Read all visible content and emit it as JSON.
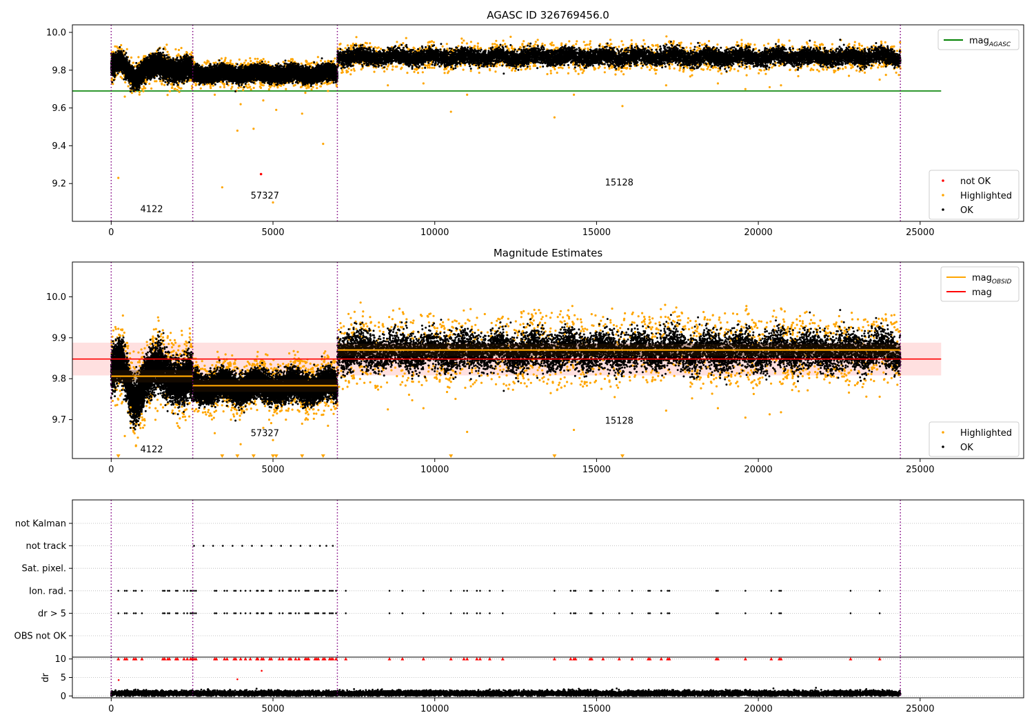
{
  "chart_data": [
    {
      "type": "scatter",
      "title": "AGASC ID 326769456.0",
      "xlim": [
        -1200,
        28200
      ],
      "ylim": [
        9.0,
        10.04
      ],
      "xticks": [
        0,
        5000,
        10000,
        15000,
        20000,
        25000
      ],
      "yticks": [
        9.2,
        9.4,
        9.6,
        9.8,
        10.0
      ],
      "xtick_labels": [
        "0",
        "5000",
        "10000",
        "15000",
        "20000",
        "25000"
      ],
      "ytick_labels": [
        "9.2",
        "9.4",
        "9.6",
        "9.8",
        "10.0"
      ],
      "observation_boundaries": [
        0,
        2520,
        6990,
        24390
      ],
      "observation_labels": [
        {
          "text": "4122",
          "x": 1250,
          "y": 9.05
        },
        {
          "text": "57327",
          "x": 4750,
          "y": 9.12
        },
        {
          "text": "15128",
          "x": 15700,
          "y": 9.19
        }
      ],
      "reference_line": {
        "name": "mag",
        "subscript": "AGASC",
        "y": 9.69,
        "x": [
          -1200,
          25650
        ],
        "color": "#008000"
      },
      "segments": [
        {
          "x": [
            0,
            2520
          ],
          "mean": 9.81,
          "spread": 0.025,
          "bumps": [
            [
              300,
              9.84
            ],
            [
              700,
              9.76
            ],
            [
              1500,
              9.82
            ],
            [
              2200,
              9.8
            ]
          ]
        },
        {
          "x": [
            2520,
            6990
          ],
          "mean": 9.78,
          "spread": 0.018,
          "bumps": []
        },
        {
          "x": [
            6990,
            24390
          ],
          "mean": 9.87,
          "spread": 0.02,
          "bumps": []
        }
      ],
      "highlighted_outliers": [
        [
          220,
          9.23
        ],
        [
          420,
          9.66
        ],
        [
          600,
          9.73
        ],
        [
          3430,
          9.18
        ],
        [
          3900,
          9.48
        ],
        [
          4000,
          9.62
        ],
        [
          4400,
          9.49
        ],
        [
          4700,
          9.64
        ],
        [
          5000,
          9.1
        ],
        [
          5100,
          9.59
        ],
        [
          5900,
          9.57
        ],
        [
          6550,
          9.41
        ],
        [
          6000,
          9.68
        ],
        [
          8550,
          9.72
        ],
        [
          9650,
          9.73
        ],
        [
          10500,
          9.58
        ],
        [
          11000,
          9.67
        ],
        [
          13700,
          9.55
        ],
        [
          14300,
          9.67
        ],
        [
          15800,
          9.61
        ],
        [
          17150,
          9.72
        ],
        [
          18750,
          9.73
        ],
        [
          19600,
          9.7
        ],
        [
          20350,
          9.71
        ],
        [
          20700,
          9.72
        ],
        [
          22800,
          9.77
        ],
        [
          23750,
          9.75
        ],
        [
          3200,
          9.67
        ],
        [
          5400,
          9.7
        ],
        [
          6700,
          9.69
        ]
      ],
      "not_ok_points": [
        [
          4630,
          9.25
        ]
      ],
      "legends": [
        {
          "entries": [
            {
              "label": "mag",
              "subscript": "AGASC",
              "color": "#008000",
              "kind": "line"
            }
          ],
          "placement": "upper right"
        },
        {
          "entries": [
            {
              "label": "not OK",
              "color": "#ff0000",
              "kind": "point"
            },
            {
              "label": "Highlighted",
              "color": "#ffa500",
              "kind": "point"
            },
            {
              "label": "OK",
              "color": "#000000",
              "kind": "point"
            }
          ],
          "placement": "lower right"
        }
      ]
    },
    {
      "type": "scatter",
      "title": "Magnitude Estimates",
      "xlim": [
        -1200,
        28200
      ],
      "ylim": [
        9.605,
        10.085
      ],
      "xticks": [
        0,
        5000,
        10000,
        15000,
        20000,
        25000
      ],
      "yticks": [
        9.7,
        9.8,
        9.9,
        10.0
      ],
      "xtick_labels": [
        "0",
        "5000",
        "10000",
        "15000",
        "20000",
        "25000"
      ],
      "ytick_labels": [
        "9.7",
        "9.8",
        "9.9",
        "10.0"
      ],
      "observation_boundaries": [
        0,
        2520,
        6990,
        24390
      ],
      "observation_labels": [
        {
          "text": "4122",
          "x": 1250,
          "y": 9.62
        },
        {
          "text": "57327",
          "x": 4750,
          "y": 9.66
        },
        {
          "text": "15128",
          "x": 15700,
          "y": 9.69
        }
      ],
      "mag_line": {
        "name": "mag",
        "y": 9.848,
        "band": [
          9.808,
          9.888
        ],
        "x": [
          -1200,
          25650
        ],
        "color": "#ff0000"
      },
      "obsid_means": [
        {
          "x": [
            0,
            2520
          ],
          "y": 9.806
        },
        {
          "x": [
            2520,
            6990
          ],
          "y": 9.783
        },
        {
          "x": [
            6990,
            24390
          ],
          "y": 9.87
        }
      ],
      "segments": [
        {
          "x": [
            0,
            2520
          ],
          "mean": 9.805,
          "spread": 0.025,
          "bumps": [
            [
              300,
              9.84
            ],
            [
              700,
              9.75
            ],
            [
              1500,
              9.82
            ],
            [
              2200,
              9.79
            ]
          ]
        },
        {
          "x": [
            2520,
            6990
          ],
          "mean": 9.78,
          "spread": 0.016,
          "bumps": []
        },
        {
          "x": [
            6990,
            24390
          ],
          "mean": 9.868,
          "spread": 0.022,
          "bumps": []
        }
      ],
      "highlighted_outliers": [
        [
          420,
          9.66
        ],
        [
          600,
          9.73
        ],
        [
          3200,
          9.667
        ],
        [
          3700,
          9.7
        ],
        [
          4000,
          9.64
        ],
        [
          4700,
          9.68
        ],
        [
          5000,
          9.65
        ],
        [
          5400,
          9.7
        ],
        [
          5900,
          9.69
        ],
        [
          6000,
          9.7
        ],
        [
          6700,
          9.685
        ],
        [
          8550,
          9.725
        ],
        [
          9650,
          9.728
        ],
        [
          11000,
          9.67
        ],
        [
          14300,
          9.675
        ],
        [
          17150,
          9.722
        ],
        [
          18750,
          9.728
        ],
        [
          19600,
          9.705
        ],
        [
          20350,
          9.713
        ],
        [
          20700,
          9.718
        ],
        [
          22800,
          9.766
        ],
        [
          23750,
          9.756
        ],
        [
          8200,
          9.78
        ],
        [
          13650,
          9.79
        ],
        [
          18550,
          9.79
        ]
      ],
      "clipped_markers_x": [
        220,
        3430,
        3900,
        4400,
        5000,
        5100,
        5900,
        6550,
        10500,
        13700,
        15800
      ],
      "legends": [
        {
          "entries": [
            {
              "label": "mag",
              "subscript": "OBSID",
              "color": "#ffa500",
              "kind": "line"
            },
            {
              "label": "mag",
              "color": "#ff0000",
              "kind": "line"
            }
          ],
          "placement": "upper right"
        },
        {
          "entries": [
            {
              "label": "Highlighted",
              "color": "#ffa500",
              "kind": "point"
            },
            {
              "label": "OK",
              "color": "#000000",
              "kind": "point"
            }
          ],
          "placement": "lower right"
        }
      ]
    },
    {
      "type": "scatter",
      "title": "",
      "xlim": [
        -1200,
        28200
      ],
      "xticks": [
        0,
        5000,
        10000,
        15000,
        20000,
        25000
      ],
      "xtick_labels": [
        "0",
        "5000",
        "10000",
        "15000",
        "20000",
        "25000"
      ],
      "observation_boundaries": [
        0,
        2520,
        6990,
        24390
      ],
      "flag_rows": [
        "not Kalman",
        "not track",
        "Sat. pixel.",
        "Ion. rad.",
        "dr > 5",
        "OBS not OK"
      ],
      "flag_events": {
        "not track": [
          2560,
          2850,
          3150,
          3450,
          3750,
          4050,
          4350,
          4650,
          4950,
          5250,
          5550,
          5850,
          6150,
          6450,
          6650,
          6850
        ],
        "Ion. rad.": [
          220,
          420,
          480,
          700,
          760,
          950,
          1600,
          1650,
          1750,
          1800,
          2000,
          2050,
          2250,
          2350,
          2450,
          2500,
          2560,
          2620,
          3200,
          3250,
          3500,
          3580,
          3800,
          3850,
          4000,
          4150,
          4300,
          4500,
          4530,
          4650,
          4700,
          4900,
          4950,
          5200,
          5300,
          5500,
          5550,
          5700,
          5800,
          6000,
          6050,
          6100,
          6300,
          6350,
          6400,
          6550,
          6600,
          6750,
          6800,
          6850,
          6950,
          7250,
          8600,
          9000,
          9650,
          10500,
          10900,
          11000,
          11300,
          11400,
          11700,
          12100,
          13700,
          14200,
          14300,
          14350,
          14800,
          14850,
          15200,
          15700,
          16100,
          16600,
          16650,
          17000,
          17200,
          17250,
          18700,
          18750,
          19600,
          20400,
          20650,
          20700,
          22850,
          23750
        ],
        "dr > 5": [
          220,
          420,
          480,
          700,
          760,
          950,
          1600,
          1650,
          1750,
          1800,
          2000,
          2050,
          2250,
          2350,
          2450,
          2500,
          2560,
          2620,
          3200,
          3250,
          3500,
          3580,
          3800,
          3850,
          4000,
          4150,
          4300,
          4500,
          4530,
          4650,
          4700,
          4900,
          4950,
          5200,
          5300,
          5500,
          5550,
          5700,
          5800,
          6000,
          6050,
          6100,
          6300,
          6350,
          6400,
          6550,
          6600,
          6750,
          6800,
          6850,
          6950,
          7250,
          8600,
          9000,
          9650,
          10500,
          10900,
          11000,
          11300,
          11400,
          11700,
          12100,
          13700,
          14200,
          14300,
          14350,
          14800,
          14850,
          15200,
          15700,
          16100,
          16600,
          16650,
          17000,
          17200,
          17250,
          18700,
          18750,
          19600,
          20400,
          20650,
          20700,
          22850,
          23750
        ]
      },
      "dr_panel": {
        "ylabel": "dr",
        "ylim": [
          -0.5,
          10.5
        ],
        "yticks": [
          0,
          5,
          10
        ],
        "ytick_labels": [
          "0",
          "5",
          "10"
        ],
        "clipped_x": [
          220,
          420,
          480,
          700,
          760,
          950,
          1600,
          1650,
          1750,
          1800,
          2000,
          2050,
          2250,
          2350,
          2450,
          2500,
          2560,
          2620,
          3200,
          3250,
          3500,
          3580,
          3800,
          3850,
          4000,
          4150,
          4300,
          4500,
          4530,
          4650,
          4700,
          4900,
          4950,
          5200,
          5300,
          5500,
          5550,
          5700,
          5800,
          6000,
          6050,
          6100,
          6300,
          6350,
          6400,
          6550,
          6600,
          6750,
          6800,
          6850,
          6950,
          7250,
          8600,
          9000,
          9650,
          10500,
          10900,
          11000,
          11300,
          11400,
          11700,
          12100,
          13700,
          14200,
          14300,
          14350,
          14800,
          14850,
          15200,
          15700,
          16100,
          16600,
          16650,
          17000,
          17200,
          17250,
          18700,
          18750,
          19600,
          20400,
          20650,
          20700,
          22850,
          23750
        ],
        "mid_points": [
          [
            230,
            4.3
          ],
          [
            4650,
            6.8
          ],
          [
            3900,
            4.5
          ]
        ],
        "baseline": {
          "x": [
            0,
            24390
          ],
          "mean": 0.7,
          "spread": 0.35
        }
      }
    }
  ]
}
